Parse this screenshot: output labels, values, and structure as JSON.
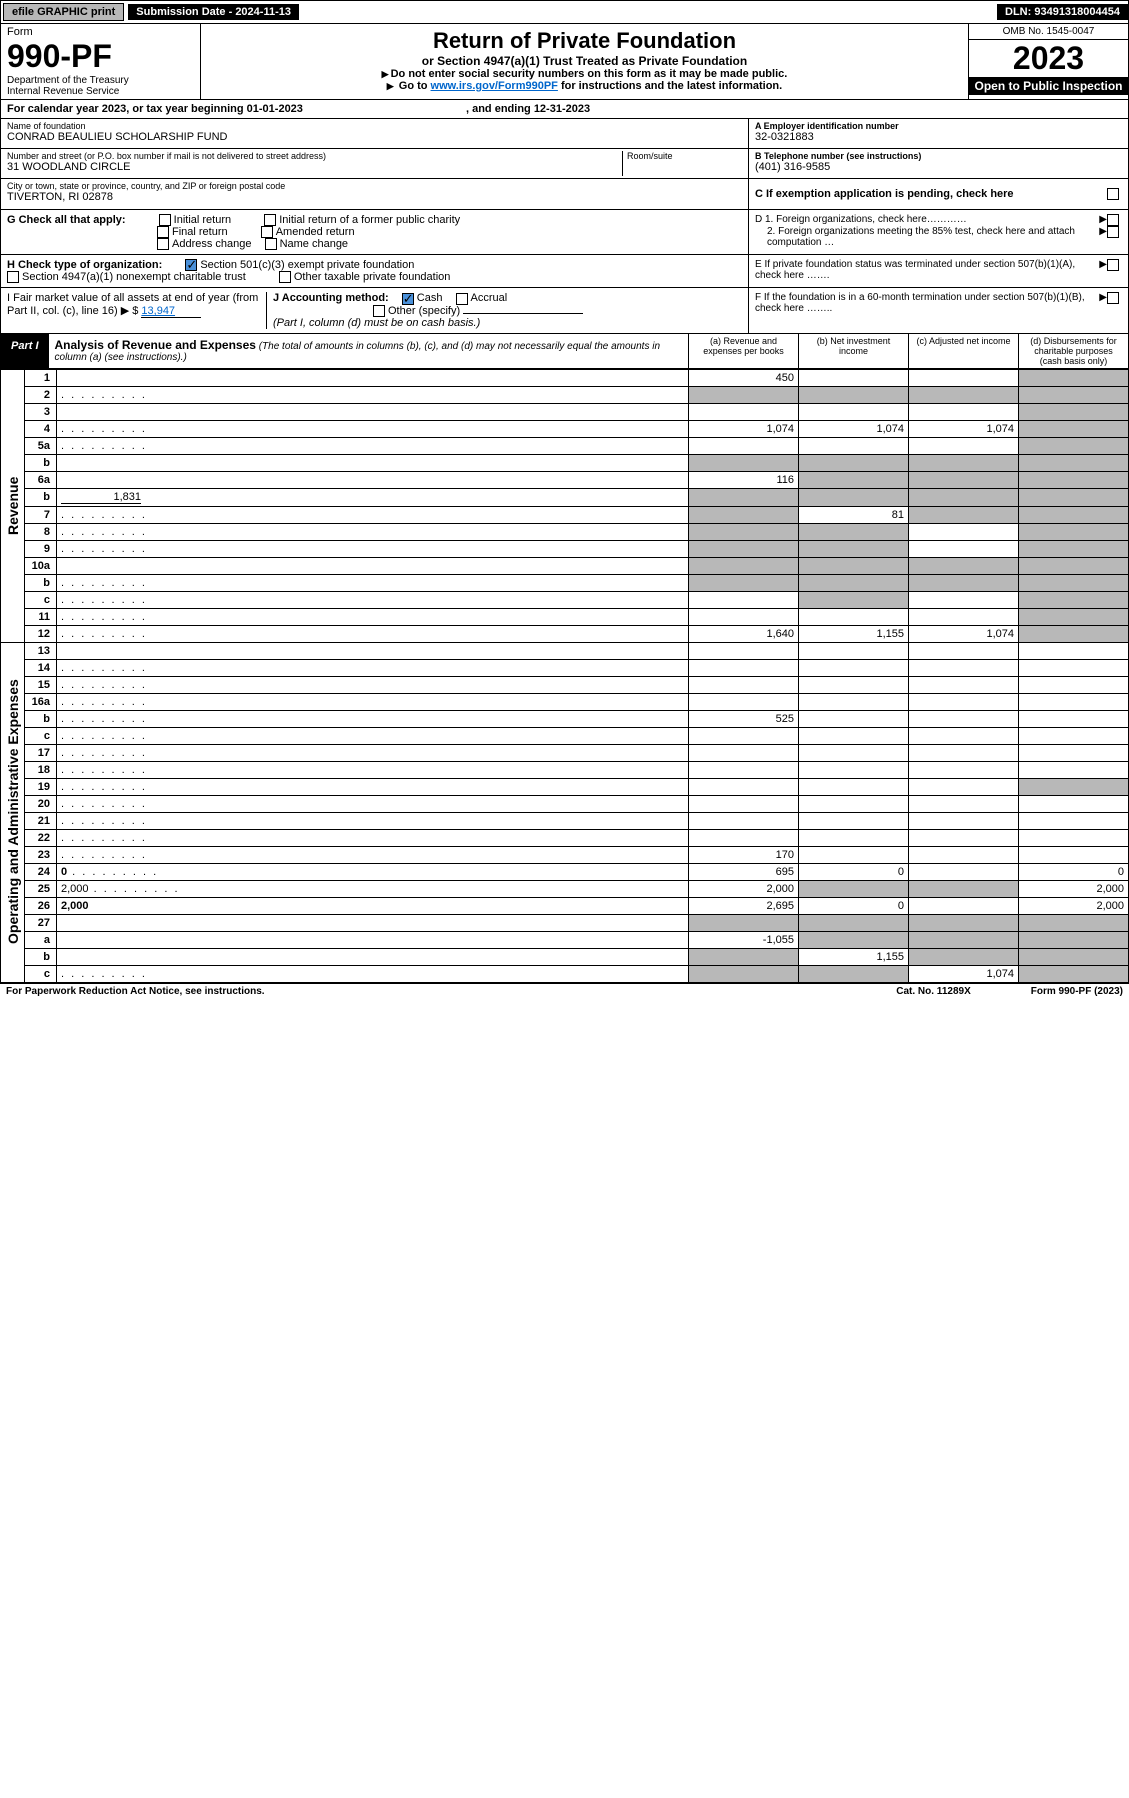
{
  "topbar": {
    "efile": "efile GRAPHIC print",
    "submission_label": "Submission Date - 2024-11-13",
    "dln": "DLN: 93491318004454"
  },
  "header": {
    "form_label": "Form",
    "form_number": "990-PF",
    "dept": "Department of the Treasury",
    "irs": "Internal Revenue Service",
    "title": "Return of Private Foundation",
    "subtitle": "or Section 4947(a)(1) Trust Treated as Private Foundation",
    "note1": "Do not enter social security numbers on this form as it may be made public.",
    "note2_pre": "Go to ",
    "note2_link": "www.irs.gov/Form990PF",
    "note2_post": " for instructions and the latest information.",
    "omb": "OMB No. 1545-0047",
    "year": "2023",
    "openpub": "Open to Public Inspection"
  },
  "calyear": {
    "text": "For calendar year 2023, or tax year beginning 01-01-2023",
    "ending": ", and ending 12-31-2023"
  },
  "nameblock": {
    "name_lbl": "Name of foundation",
    "name": "CONRAD BEAULIEU SCHOLARSHIP FUND",
    "addr_lbl": "Number and street (or P.O. box number if mail is not delivered to street address)",
    "addr": "31 WOODLAND CIRCLE",
    "room_lbl": "Room/suite",
    "city_lbl": "City or town, state or province, country, and ZIP or foreign postal code",
    "city": "TIVERTON, RI  02878",
    "ein_lbl": "A Employer identification number",
    "ein": "32-0321883",
    "phone_lbl": "B Telephone number (see instructions)",
    "phone": "(401) 316-9585",
    "c_lbl": "C If exemption application is pending, check here"
  },
  "checks": {
    "g_lbl": "G Check all that apply:",
    "initial": "Initial return",
    "initial_former": "Initial return of a former public charity",
    "final": "Final return",
    "amended": "Amended return",
    "address": "Address change",
    "name_change": "Name change",
    "h_lbl": "H Check type of organization:",
    "h_501c3": "Section 501(c)(3) exempt private foundation",
    "h_4947": "Section 4947(a)(1) nonexempt charitable trust",
    "h_other": "Other taxable private foundation",
    "i_lbl": "I Fair market value of all assets at end of year (from Part II, col. (c), line 16)",
    "i_val": "13,947",
    "j_lbl": "J Accounting method:",
    "j_cash": "Cash",
    "j_accrual": "Accrual",
    "j_other": "Other (specify)",
    "j_note": "(Part I, column (d) must be on cash basis.)",
    "d1": "D 1. Foreign organizations, check here…………",
    "d2": "2. Foreign organizations meeting the 85% test, check here and attach computation …",
    "e_lbl": "E  If private foundation status was terminated under section 507(b)(1)(A), check here …….",
    "f_lbl": "F  If the foundation is in a 60-month termination under section 507(b)(1)(B), check here …….."
  },
  "part1": {
    "part_lbl": "Part I",
    "title": "Analysis of Revenue and Expenses",
    "title_note": " (The total of amounts in columns (b), (c), and (d) may not necessarily equal the amounts in column (a) (see instructions).)",
    "col_a": "(a)   Revenue and expenses per books",
    "col_b": "(b)   Net investment income",
    "col_c": "(c)   Adjusted net income",
    "col_d": "(d)  Disbursements for charitable purposes (cash basis only)",
    "side_rev": "Revenue",
    "side_exp": "Operating and Administrative Expenses"
  },
  "rows": [
    {
      "n": "1",
      "d": "",
      "a": "450",
      "b": "",
      "c": "",
      "grey": [
        "d"
      ]
    },
    {
      "n": "2",
      "d": "",
      "dots": true,
      "a": "",
      "b": "",
      "c": "",
      "grey": [
        "a",
        "b",
        "c",
        "d"
      ]
    },
    {
      "n": "3",
      "d": "",
      "a": "",
      "b": "",
      "c": "",
      "grey": [
        "d"
      ]
    },
    {
      "n": "4",
      "d": "",
      "dots": true,
      "a": "1,074",
      "b": "1,074",
      "c": "1,074",
      "grey": [
        "d"
      ]
    },
    {
      "n": "5a",
      "d": "",
      "dots": true,
      "a": "",
      "b": "",
      "c": "",
      "grey": [
        "d"
      ]
    },
    {
      "n": "b",
      "d": "",
      "a": "",
      "b": "",
      "c": "",
      "grey": [
        "a",
        "b",
        "c",
        "d"
      ]
    },
    {
      "n": "6a",
      "d": "",
      "a": "116",
      "b": "",
      "c": "",
      "grey": [
        "b",
        "c",
        "d"
      ]
    },
    {
      "n": "b",
      "d": "",
      "inline": "1,831",
      "a": "",
      "b": "",
      "c": "",
      "grey": [
        "a",
        "b",
        "c",
        "d"
      ]
    },
    {
      "n": "7",
      "d": "",
      "dots": true,
      "a": "",
      "b": "81",
      "c": "",
      "grey": [
        "a",
        "c",
        "d"
      ]
    },
    {
      "n": "8",
      "d": "",
      "dots": true,
      "a": "",
      "b": "",
      "c": "",
      "grey": [
        "a",
        "b",
        "d"
      ]
    },
    {
      "n": "9",
      "d": "",
      "dots": true,
      "a": "",
      "b": "",
      "c": "",
      "grey": [
        "a",
        "b",
        "d"
      ]
    },
    {
      "n": "10a",
      "d": "",
      "a": "",
      "b": "",
      "c": "",
      "grey": [
        "a",
        "b",
        "c",
        "d"
      ]
    },
    {
      "n": "b",
      "d": "",
      "dots": true,
      "a": "",
      "b": "",
      "c": "",
      "grey": [
        "a",
        "b",
        "c",
        "d"
      ]
    },
    {
      "n": "c",
      "d": "",
      "dots": true,
      "a": "",
      "b": "",
      "c": "",
      "grey": [
        "b",
        "d"
      ]
    },
    {
      "n": "11",
      "d": "",
      "dots": true,
      "a": "",
      "b": "",
      "c": "",
      "grey": [
        "d"
      ]
    },
    {
      "n": "12",
      "d": "",
      "dots": true,
      "bold": true,
      "a": "1,640",
      "b": "1,155",
      "c": "1,074",
      "grey": [
        "d"
      ]
    },
    {
      "n": "13",
      "d": "",
      "a": "",
      "b": "",
      "c": ""
    },
    {
      "n": "14",
      "d": "",
      "dots": true,
      "a": "",
      "b": "",
      "c": ""
    },
    {
      "n": "15",
      "d": "",
      "dots": true,
      "a": "",
      "b": "",
      "c": ""
    },
    {
      "n": "16a",
      "d": "",
      "dots": true,
      "a": "",
      "b": "",
      "c": ""
    },
    {
      "n": "b",
      "d": "",
      "dots": true,
      "a": "525",
      "b": "",
      "c": ""
    },
    {
      "n": "c",
      "d": "",
      "dots": true,
      "a": "",
      "b": "",
      "c": ""
    },
    {
      "n": "17",
      "d": "",
      "dots": true,
      "a": "",
      "b": "",
      "c": ""
    },
    {
      "n": "18",
      "d": "",
      "dots": true,
      "a": "",
      "b": "",
      "c": ""
    },
    {
      "n": "19",
      "d": "",
      "dots": true,
      "a": "",
      "b": "",
      "c": "",
      "grey": [
        "d"
      ]
    },
    {
      "n": "20",
      "d": "",
      "dots": true,
      "a": "",
      "b": "",
      "c": ""
    },
    {
      "n": "21",
      "d": "",
      "dots": true,
      "a": "",
      "b": "",
      "c": ""
    },
    {
      "n": "22",
      "d": "",
      "dots": true,
      "a": "",
      "b": "",
      "c": ""
    },
    {
      "n": "23",
      "d": "",
      "dots": true,
      "a": "170",
      "b": "",
      "c": ""
    },
    {
      "n": "24",
      "d": "0",
      "dots": true,
      "bold": true,
      "a": "695",
      "b": "0",
      "c": ""
    },
    {
      "n": "25",
      "d": "2,000",
      "dots": true,
      "a": "2,000",
      "b": "",
      "c": "",
      "grey": [
        "b",
        "c"
      ]
    },
    {
      "n": "26",
      "d": "2,000",
      "bold": true,
      "a": "2,695",
      "b": "0",
      "c": ""
    },
    {
      "n": "27",
      "d": "",
      "a": "",
      "b": "",
      "c": "",
      "grey": [
        "a",
        "b",
        "c",
        "d"
      ]
    },
    {
      "n": "a",
      "d": "",
      "bold": true,
      "a": "-1,055",
      "b": "",
      "c": "",
      "grey": [
        "b",
        "c",
        "d"
      ]
    },
    {
      "n": "b",
      "d": "",
      "bold": true,
      "a": "",
      "b": "1,155",
      "c": "",
      "grey": [
        "a",
        "c",
        "d"
      ]
    },
    {
      "n": "c",
      "d": "",
      "bold": true,
      "dots": true,
      "a": "",
      "b": "",
      "c": "1,074",
      "grey": [
        "a",
        "b",
        "d"
      ]
    }
  ],
  "footer": {
    "paperwork": "For Paperwork Reduction Act Notice, see instructions.",
    "catno": "Cat. No. 11289X",
    "formref": "Form 990-PF (2023)"
  }
}
